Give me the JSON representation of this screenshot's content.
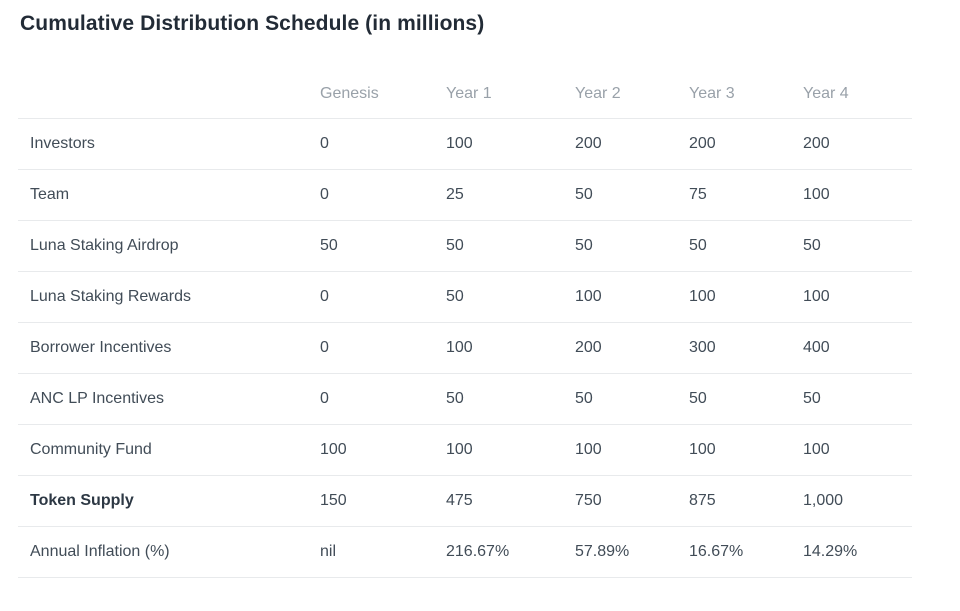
{
  "page": {
    "title": "Cumulative Distribution Schedule (in millions)"
  },
  "colors": {
    "background": "#ffffff",
    "title_text": "#222b36",
    "header_text": "#99a1a9",
    "body_text": "#414c57",
    "divider": "#e8eaec"
  },
  "table": {
    "columns": [
      "",
      "Genesis",
      "Year 1",
      "Year 2",
      "Year 3",
      "Year 4"
    ],
    "rows": [
      {
        "label": "Investors",
        "bold": false,
        "values": [
          "0",
          "100",
          "200",
          "200",
          "200"
        ]
      },
      {
        "label": "Team",
        "bold": false,
        "values": [
          "0",
          "25",
          "50",
          "75",
          "100"
        ]
      },
      {
        "label": "Luna Staking Airdrop",
        "bold": false,
        "values": [
          "50",
          "50",
          "50",
          "50",
          "50"
        ]
      },
      {
        "label": "Luna Staking Rewards",
        "bold": false,
        "values": [
          "0",
          "50",
          "100",
          "100",
          "100"
        ]
      },
      {
        "label": "Borrower Incentives",
        "bold": false,
        "values": [
          "0",
          "100",
          "200",
          "300",
          "400"
        ]
      },
      {
        "label": "ANC LP Incentives",
        "bold": false,
        "values": [
          "0",
          "50",
          "50",
          "50",
          "50"
        ]
      },
      {
        "label": "Community Fund",
        "bold": false,
        "values": [
          "100",
          "100",
          "100",
          "100",
          "100"
        ]
      },
      {
        "label": "Token Supply",
        "bold": true,
        "values": [
          "150",
          "475",
          "750",
          "875",
          "1,000"
        ]
      },
      {
        "label": "Annual Inflation (%)",
        "bold": false,
        "values": [
          "nil",
          "216.67%",
          "57.89%",
          "16.67%",
          "14.29%"
        ]
      }
    ]
  },
  "chart_data": {
    "type": "table",
    "title": "Cumulative Distribution Schedule (in millions)",
    "columns": [
      "Genesis",
      "Year 1",
      "Year 2",
      "Year 3",
      "Year 4"
    ],
    "series": [
      {
        "name": "Investors",
        "values": [
          0,
          100,
          200,
          200,
          200
        ]
      },
      {
        "name": "Team",
        "values": [
          0,
          25,
          50,
          75,
          100
        ]
      },
      {
        "name": "Luna Staking Airdrop",
        "values": [
          50,
          50,
          50,
          50,
          50
        ]
      },
      {
        "name": "Luna Staking Rewards",
        "values": [
          0,
          50,
          100,
          100,
          100
        ]
      },
      {
        "name": "Borrower Incentives",
        "values": [
          0,
          100,
          200,
          300,
          400
        ]
      },
      {
        "name": "ANC LP Incentives",
        "values": [
          0,
          50,
          50,
          50,
          50
        ]
      },
      {
        "name": "Community Fund",
        "values": [
          100,
          100,
          100,
          100,
          100
        ]
      },
      {
        "name": "Token Supply",
        "values": [
          150,
          475,
          750,
          875,
          1000
        ]
      },
      {
        "name": "Annual Inflation (%)",
        "values": [
          "nil",
          "216.67%",
          "57.89%",
          "16.67%",
          "14.29%"
        ]
      }
    ]
  }
}
